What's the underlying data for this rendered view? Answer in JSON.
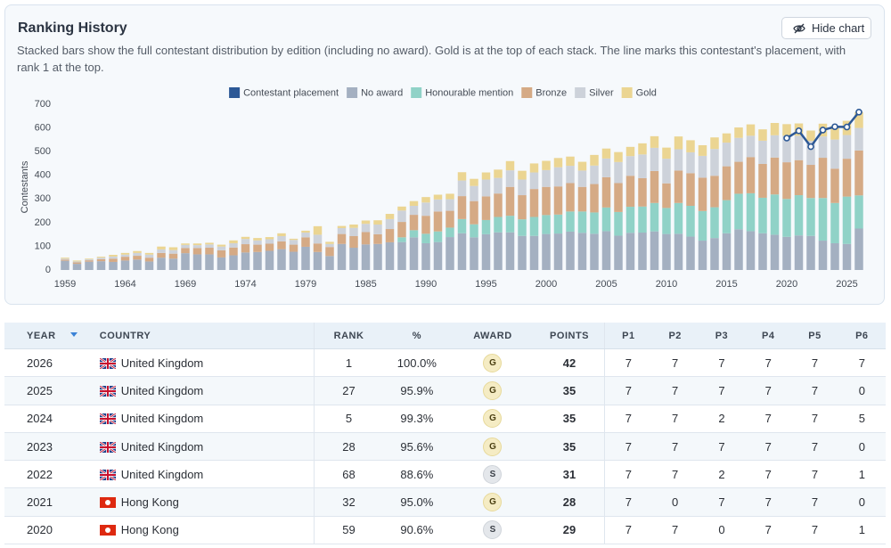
{
  "header": {
    "title": "Ranking History",
    "description": "Stacked bars show the full contestant distribution by edition (including no award). Gold is at the top of each stack. The line marks this contestant's placement, with rank 1 at the top.",
    "button": "Hide chart"
  },
  "chart_data": {
    "type": "bar",
    "stacked": true,
    "y_label": "Contestants",
    "ylim": [
      0,
      700
    ],
    "yticks": [
      0,
      100,
      200,
      300,
      400,
      500,
      600,
      700
    ],
    "grid": false,
    "categories": [
      "1959",
      null,
      null,
      null,
      null,
      "1964",
      null,
      null,
      null,
      null,
      "1969",
      null,
      null,
      null,
      null,
      "1974",
      null,
      null,
      null,
      null,
      "1979",
      null,
      null,
      null,
      null,
      "1985",
      null,
      null,
      null,
      null,
      "1990",
      null,
      null,
      null,
      null,
      "1995",
      null,
      null,
      null,
      null,
      "2000",
      null,
      null,
      null,
      null,
      "2005",
      null,
      null,
      null,
      null,
      "2010",
      null,
      null,
      null,
      null,
      "2015",
      null,
      null,
      null,
      null,
      "2020",
      null,
      null,
      null,
      null,
      "2025",
      null
    ],
    "series": [
      {
        "name": "Contestant placement",
        "type": "line",
        "color": "#2c5896",
        "values": [
          null,
          null,
          null,
          null,
          null,
          null,
          null,
          null,
          null,
          null,
          null,
          null,
          null,
          null,
          null,
          null,
          null,
          null,
          null,
          null,
          null,
          null,
          null,
          null,
          null,
          null,
          null,
          null,
          null,
          null,
          null,
          null,
          null,
          null,
          null,
          null,
          null,
          null,
          null,
          null,
          null,
          null,
          null,
          null,
          null,
          null,
          null,
          null,
          null,
          null,
          null,
          null,
          null,
          null,
          null,
          null,
          null,
          null,
          null,
          null,
          557,
          588,
          521,
          591,
          605,
          604,
          667
        ]
      },
      {
        "name": "No award",
        "color": "#a4b0c1",
        "values": [
          39,
          26,
          35,
          37,
          34,
          40,
          44,
          36,
          52,
          48,
          71,
          66,
          66,
          53,
          62,
          74,
          76,
          81,
          88,
          77,
          98,
          76,
          59,
          110,
          94,
          108,
          110,
          117,
          118,
          138,
          113,
          118,
          139,
          155,
          138,
          151,
          159,
          159,
          144,
          144,
          152,
          154,
          162,
          157,
          153,
          164,
          145,
          157,
          158,
          163,
          152,
          153,
          141,
          124,
          135,
          155,
          172,
          164,
          155,
          149,
          140,
          146,
          144,
          124,
          113,
          110,
          175
        ]
      },
      {
        "name": "Honourable mention",
        "color": "#90d2c7",
        "values": [
          0,
          0,
          0,
          0,
          0,
          0,
          0,
          0,
          0,
          0,
          0,
          0,
          0,
          0,
          0,
          0,
          0,
          0,
          0,
          0,
          0,
          0,
          0,
          0,
          0,
          0,
          0,
          0,
          20,
          30,
          40,
          45,
          40,
          60,
          55,
          60,
          65,
          70,
          70,
          80,
          80,
          80,
          85,
          90,
          90,
          100,
          100,
          110,
          110,
          120,
          110,
          130,
          130,
          125,
          130,
          140,
          150,
          160,
          150,
          170,
          160,
          170,
          160,
          180,
          170,
          200,
          140
        ]
      },
      {
        "name": "Bronze",
        "color": "#d5aa85",
        "values": [
          5,
          6,
          6,
          9,
          14,
          16,
          16,
          16,
          20,
          21,
          22,
          27,
          28,
          30,
          33,
          35,
          31,
          30,
          33,
          30,
          40,
          36,
          38,
          42,
          49,
          52,
          41,
          56,
          65,
          65,
          76,
          84,
          71,
          97,
          98,
          100,
          99,
          122,
          102,
          118,
          119,
          119,
          120,
          104,
          120,
          128,
          122,
          131,
          120,
          135,
          104,
          137,
          138,
          141,
          133,
          143,
          135,
          153,
          143,
          156,
          155,
          148,
          140,
          170,
          145,
          160,
          190
        ]
      },
      {
        "name": "Silver",
        "color": "#cdd2da",
        "values": [
          4,
          4,
          4,
          6,
          9,
          9,
          12,
          13,
          15,
          15,
          13,
          12,
          14,
          16,
          18,
          22,
          18,
          19,
          22,
          20,
          20,
          37,
          13,
          25,
          35,
          35,
          41,
          42,
          48,
          38,
          56,
          51,
          49,
          66,
          64,
          71,
          66,
          70,
          66,
          70,
          71,
          81,
          73,
          69,
          78,
          79,
          89,
          83,
          100,
          98,
          104,
          90,
          88,
          92,
          113,
          100,
          101,
          90,
          98,
          94,
          112,
          103,
          101,
          90,
          123,
          100,
          95
        ]
      },
      {
        "name": "Gold",
        "color": "#ebd592",
        "values": [
          4,
          4,
          3,
          4,
          7,
          7,
          8,
          7,
          12,
          12,
          6,
          7,
          7,
          8,
          12,
          9,
          10,
          9,
          12,
          5,
          8,
          36,
          9,
          9,
          14,
          14,
          18,
          22,
          17,
          20,
          23,
          20,
          23,
          35,
          30,
          30,
          35,
          39,
          37,
          38,
          39,
          39,
          39,
          37,
          45,
          42,
          42,
          39,
          47,
          49,
          47,
          54,
          51,
          45,
          49,
          39,
          44,
          48,
          48,
          52,
          49,
          52,
          44,
          54,
          58,
          60,
          67
        ]
      }
    ]
  },
  "table": {
    "columns": [
      "YEAR",
      "COUNTRY",
      "RANK",
      "%",
      "AWARD",
      "POINTS",
      "P1",
      "P2",
      "P3",
      "P4",
      "P5",
      "P6"
    ],
    "rows": [
      [
        2026,
        "United Kingdom",
        1,
        "100.0%",
        "G",
        42,
        7,
        7,
        7,
        7,
        7,
        7
      ],
      [
        2025,
        "United Kingdom",
        27,
        "95.9%",
        "G",
        35,
        7,
        7,
        7,
        7,
        7,
        0
      ],
      [
        2024,
        "United Kingdom",
        5,
        "99.3%",
        "G",
        35,
        7,
        7,
        2,
        7,
        7,
        5
      ],
      [
        2023,
        "United Kingdom",
        28,
        "95.6%",
        "G",
        35,
        7,
        7,
        7,
        7,
        7,
        0
      ],
      [
        2022,
        "United Kingdom",
        68,
        "88.6%",
        "S",
        31,
        7,
        7,
        2,
        7,
        7,
        1
      ],
      [
        2021,
        "Hong Kong",
        32,
        "95.0%",
        "G",
        28,
        7,
        0,
        7,
        7,
        7,
        0
      ],
      [
        2020,
        "Hong Kong",
        59,
        "90.6%",
        "S",
        29,
        7,
        7,
        0,
        7,
        7,
        1
      ]
    ]
  }
}
